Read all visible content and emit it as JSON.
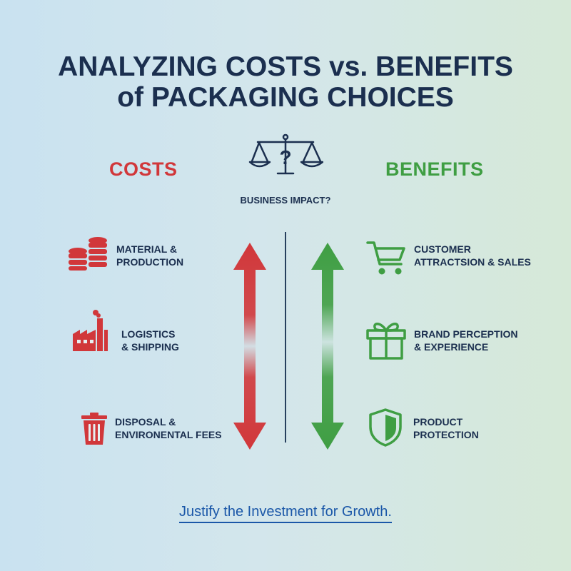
{
  "title": {
    "line1": "ANALYZING COSTS vs. BENEFITS",
    "line2": "of PACKAGING CHOICES"
  },
  "costs": {
    "heading": "COSTS",
    "items": [
      {
        "label": "MATERIAL &\nPRODUCTION",
        "icon": "coins-stack-icon"
      },
      {
        "label": "LOGISTICS\n& SHIPPING",
        "icon": "factory-icon"
      },
      {
        "label": "DISPOSAL &\nENVIRONENTAL FEES",
        "icon": "trash-bin-icon"
      }
    ]
  },
  "benefits": {
    "heading": "BENEFITS",
    "items": [
      {
        "label": "CUSTOMER\nATTRACTSION & SALES",
        "icon": "shopping-cart-icon"
      },
      {
        "label": "BRAND PERCEPTION\n& EXPERIENCE",
        "icon": "gift-box-icon"
      },
      {
        "label": "PRODUCT\nPROTECTION",
        "icon": "shield-check-icon"
      }
    ]
  },
  "center": {
    "icon": "balance-scale-question-icon",
    "label": "BUSINESS IMPACT?"
  },
  "footer": "Justify the Investment for Growth.",
  "colors": {
    "title": "#1b2f4f",
    "costs": "#d1373a",
    "benefits": "#3f9e43",
    "footer": "#1a57a8"
  }
}
